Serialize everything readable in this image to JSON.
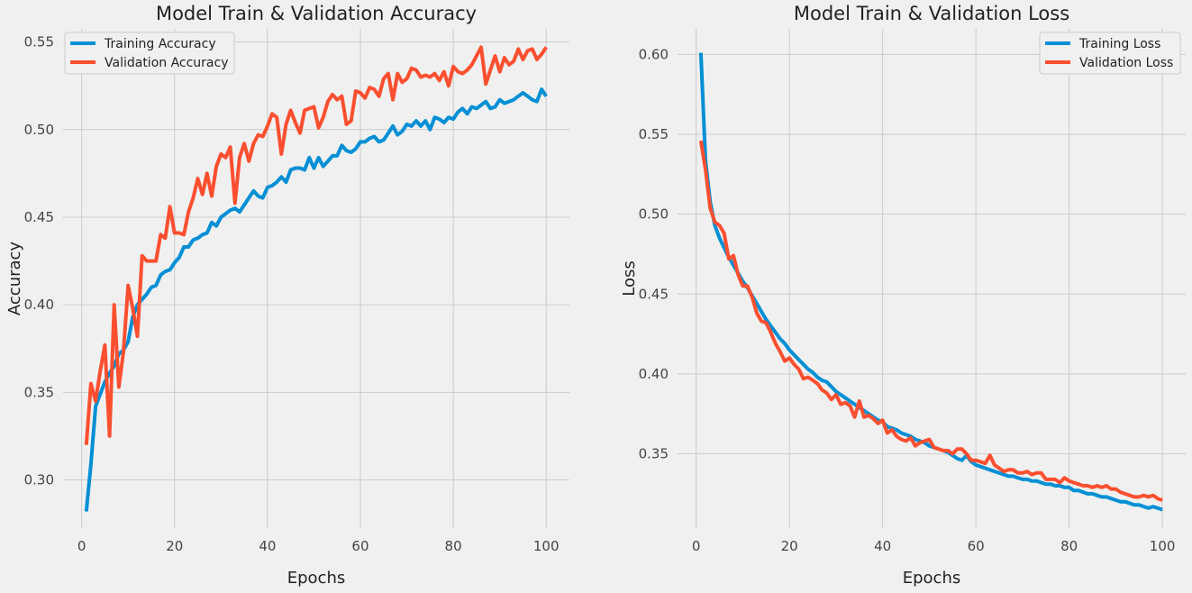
{
  "figure": {
    "background": "#f0f0f0",
    "plot_background": "#f0f0f0",
    "grid_color": "#cbcbcb"
  },
  "chart_data": [
    {
      "type": "line",
      "title": "Model Train & Validation Accuracy",
      "xlabel": "Epochs",
      "ylabel": "Accuracy",
      "xlim": [
        -4,
        105
      ],
      "ylim": [
        0.2725,
        0.5575
      ],
      "xticks": [
        0,
        20,
        40,
        60,
        80,
        100
      ],
      "xtick_labels": [
        "0",
        "20",
        "40",
        "60",
        "80",
        "100"
      ],
      "yticks": [
        0.3,
        0.35,
        0.4,
        0.45,
        0.5,
        0.55
      ],
      "ytick_labels": [
        "0.30",
        "0.35",
        "0.40",
        "0.45",
        "0.50",
        "0.55"
      ],
      "grid": true,
      "legend_position": "upper-left",
      "x": [
        1,
        2,
        3,
        4,
        5,
        6,
        7,
        8,
        9,
        10,
        11,
        12,
        13,
        14,
        15,
        16,
        17,
        18,
        19,
        20,
        21,
        22,
        23,
        24,
        25,
        26,
        27,
        28,
        29,
        30,
        31,
        32,
        33,
        34,
        35,
        36,
        37,
        38,
        39,
        40,
        41,
        42,
        43,
        44,
        45,
        46,
        47,
        48,
        49,
        50,
        51,
        52,
        53,
        54,
        55,
        56,
        57,
        58,
        59,
        60,
        61,
        62,
        63,
        64,
        65,
        66,
        67,
        68,
        69,
        70,
        71,
        72,
        73,
        74,
        75,
        76,
        77,
        78,
        79,
        80,
        81,
        82,
        83,
        84,
        85,
        86,
        87,
        88,
        89,
        90,
        91,
        92,
        93,
        94,
        95,
        96,
        97,
        98,
        99,
        100
      ],
      "series": [
        {
          "name": "Training Accuracy",
          "color": "#008fd5",
          "values": [
            0.282,
            0.309,
            0.342,
            0.349,
            0.356,
            0.361,
            0.365,
            0.372,
            0.374,
            0.379,
            0.393,
            0.4,
            0.403,
            0.406,
            0.41,
            0.411,
            0.417,
            0.419,
            0.42,
            0.424,
            0.427,
            0.433,
            0.433,
            0.437,
            0.438,
            0.44,
            0.441,
            0.447,
            0.445,
            0.45,
            0.452,
            0.454,
            0.455,
            0.453,
            0.457,
            0.461,
            0.465,
            0.462,
            0.461,
            0.467,
            0.468,
            0.47,
            0.473,
            0.47,
            0.477,
            0.478,
            0.478,
            0.477,
            0.484,
            0.478,
            0.484,
            0.479,
            0.482,
            0.485,
            0.485,
            0.491,
            0.488,
            0.487,
            0.489,
            0.493,
            0.493,
            0.495,
            0.496,
            0.493,
            0.494,
            0.498,
            0.502,
            0.497,
            0.499,
            0.503,
            0.502,
            0.505,
            0.502,
            0.505,
            0.5,
            0.507,
            0.506,
            0.504,
            0.507,
            0.506,
            0.51,
            0.512,
            0.509,
            0.513,
            0.512,
            0.514,
            0.516,
            0.512,
            0.513,
            0.517,
            0.515,
            0.516,
            0.517,
            0.519,
            0.521,
            0.519,
            0.517,
            0.516,
            0.523,
            0.519
          ]
        },
        {
          "name": "Validation Accuracy",
          "color": "#fc4f30",
          "values": [
            0.32,
            0.355,
            0.345,
            0.362,
            0.377,
            0.325,
            0.4,
            0.353,
            0.373,
            0.411,
            0.398,
            0.382,
            0.428,
            0.425,
            0.425,
            0.425,
            0.44,
            0.438,
            0.456,
            0.441,
            0.441,
            0.44,
            0.453,
            0.461,
            0.472,
            0.463,
            0.475,
            0.462,
            0.479,
            0.486,
            0.484,
            0.49,
            0.458,
            0.484,
            0.492,
            0.482,
            0.492,
            0.497,
            0.496,
            0.502,
            0.509,
            0.507,
            0.486,
            0.503,
            0.511,
            0.504,
            0.498,
            0.511,
            0.512,
            0.513,
            0.501,
            0.507,
            0.516,
            0.52,
            0.517,
            0.519,
            0.503,
            0.505,
            0.522,
            0.521,
            0.518,
            0.524,
            0.523,
            0.519,
            0.529,
            0.532,
            0.517,
            0.532,
            0.527,
            0.529,
            0.535,
            0.534,
            0.53,
            0.531,
            0.53,
            0.532,
            0.528,
            0.533,
            0.525,
            0.536,
            0.533,
            0.532,
            0.534,
            0.537,
            0.542,
            0.547,
            0.526,
            0.534,
            0.542,
            0.533,
            0.541,
            0.537,
            0.539,
            0.546,
            0.54,
            0.545,
            0.546,
            0.54,
            0.543,
            0.547
          ]
        }
      ]
    },
    {
      "type": "line",
      "title": "Model Train & Validation Loss",
      "xlabel": "Epochs",
      "ylabel": "Loss",
      "xlim": [
        -4,
        105
      ],
      "ylim": [
        0.3035,
        0.616
      ],
      "xticks": [
        0,
        20,
        40,
        60,
        80,
        100
      ],
      "xtick_labels": [
        "0",
        "20",
        "40",
        "60",
        "80",
        "100"
      ],
      "yticks": [
        0.35,
        0.4,
        0.45,
        0.5,
        0.55,
        0.6
      ],
      "ytick_labels": [
        "0.35",
        "0.40",
        "0.45",
        "0.50",
        "0.55",
        "0.60"
      ],
      "grid": true,
      "legend_position": "upper-right",
      "x": [
        1,
        2,
        3,
        4,
        5,
        6,
        7,
        8,
        9,
        10,
        11,
        12,
        13,
        14,
        15,
        16,
        17,
        18,
        19,
        20,
        21,
        22,
        23,
        24,
        25,
        26,
        27,
        28,
        29,
        30,
        31,
        32,
        33,
        34,
        35,
        36,
        37,
        38,
        39,
        40,
        41,
        42,
        43,
        44,
        45,
        46,
        47,
        48,
        49,
        50,
        51,
        52,
        53,
        54,
        55,
        56,
        57,
        58,
        59,
        60,
        61,
        62,
        63,
        64,
        65,
        66,
        67,
        68,
        69,
        70,
        71,
        72,
        73,
        74,
        75,
        76,
        77,
        78,
        79,
        80,
        81,
        82,
        83,
        84,
        85,
        86,
        87,
        88,
        89,
        90,
        91,
        92,
        93,
        94,
        95,
        96,
        97,
        98,
        99,
        100
      ],
      "series": [
        {
          "name": "Training Loss",
          "color": "#008fd5",
          "values": [
            0.601,
            0.534,
            0.508,
            0.493,
            0.485,
            0.479,
            0.473,
            0.468,
            0.463,
            0.458,
            0.454,
            0.449,
            0.444,
            0.439,
            0.434,
            0.43,
            0.426,
            0.422,
            0.419,
            0.415,
            0.412,
            0.409,
            0.406,
            0.403,
            0.401,
            0.398,
            0.396,
            0.395,
            0.392,
            0.389,
            0.387,
            0.385,
            0.383,
            0.381,
            0.379,
            0.377,
            0.375,
            0.373,
            0.371,
            0.37,
            0.367,
            0.366,
            0.365,
            0.363,
            0.362,
            0.361,
            0.359,
            0.358,
            0.357,
            0.355,
            0.354,
            0.353,
            0.352,
            0.351,
            0.349,
            0.347,
            0.346,
            0.349,
            0.345,
            0.343,
            0.342,
            0.341,
            0.34,
            0.339,
            0.338,
            0.337,
            0.336,
            0.336,
            0.335,
            0.334,
            0.334,
            0.333,
            0.333,
            0.332,
            0.331,
            0.331,
            0.33,
            0.33,
            0.329,
            0.329,
            0.327,
            0.327,
            0.326,
            0.325,
            0.325,
            0.324,
            0.323,
            0.323,
            0.322,
            0.321,
            0.32,
            0.32,
            0.319,
            0.318,
            0.318,
            0.317,
            0.316,
            0.317,
            0.316,
            0.315
          ]
        },
        {
          "name": "Validation Loss",
          "color": "#fc4f30",
          "values": [
            0.546,
            0.528,
            0.504,
            0.495,
            0.493,
            0.488,
            0.472,
            0.474,
            0.462,
            0.455,
            0.455,
            0.448,
            0.438,
            0.433,
            0.432,
            0.426,
            0.419,
            0.414,
            0.408,
            0.41,
            0.406,
            0.403,
            0.397,
            0.398,
            0.396,
            0.394,
            0.39,
            0.388,
            0.384,
            0.387,
            0.381,
            0.382,
            0.38,
            0.373,
            0.383,
            0.373,
            0.374,
            0.372,
            0.369,
            0.371,
            0.363,
            0.365,
            0.361,
            0.359,
            0.358,
            0.36,
            0.355,
            0.357,
            0.358,
            0.359,
            0.354,
            0.353,
            0.352,
            0.352,
            0.35,
            0.353,
            0.353,
            0.35,
            0.346,
            0.346,
            0.345,
            0.344,
            0.349,
            0.343,
            0.341,
            0.339,
            0.34,
            0.34,
            0.338,
            0.338,
            0.339,
            0.337,
            0.338,
            0.338,
            0.334,
            0.334,
            0.334,
            0.332,
            0.335,
            0.333,
            0.332,
            0.331,
            0.33,
            0.33,
            0.329,
            0.33,
            0.329,
            0.33,
            0.328,
            0.328,
            0.326,
            0.325,
            0.324,
            0.323,
            0.323,
            0.324,
            0.323,
            0.324,
            0.322,
            0.321
          ]
        }
      ]
    }
  ]
}
